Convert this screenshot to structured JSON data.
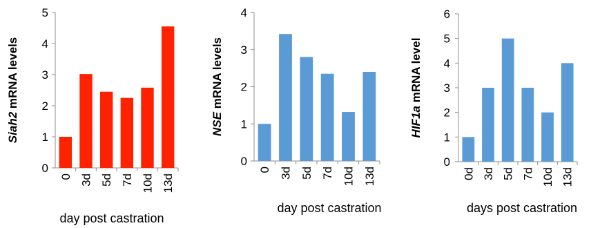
{
  "chart_data": [
    {
      "type": "bar",
      "categories": [
        "0",
        "3d",
        "5d",
        "7d",
        "10d",
        "13d"
      ],
      "values": [
        1.0,
        3.02,
        2.45,
        2.25,
        2.58,
        4.55
      ],
      "ylim": [
        0,
        5
      ],
      "yticks": [
        "0",
        "1",
        "2",
        "3",
        "4",
        "5"
      ],
      "xlabel": "day post castration",
      "ylabel_italic": "Siah2",
      "ylabel_rest": " mRNA  levels",
      "color": "#ff2200",
      "grid": false,
      "legend": "none"
    },
    {
      "type": "bar",
      "categories": [
        "0",
        "3d",
        "5d",
        "7d",
        "10d",
        "13d"
      ],
      "values": [
        1.0,
        3.42,
        2.8,
        2.35,
        1.32,
        2.4
      ],
      "ylim": [
        0,
        4
      ],
      "yticks": [
        "0",
        "1",
        "2",
        "3",
        "4"
      ],
      "xlabel": "day post castration",
      "ylabel_italic": "NSE",
      "ylabel_rest": " mRNA levels",
      "color": "#5b9bd5",
      "grid": false,
      "legend": "none"
    },
    {
      "type": "bar",
      "categories": [
        "0d",
        "3d",
        "5d",
        "7d",
        "10d",
        "13d"
      ],
      "values": [
        1.0,
        3.0,
        5.0,
        3.0,
        2.0,
        4.0
      ],
      "ylim": [
        0,
        6
      ],
      "yticks": [
        "0",
        "1",
        "2",
        "3",
        "4",
        "5",
        "6"
      ],
      "xlabel": "days post castration",
      "ylabel_italic": "HIF1a",
      "ylabel_rest": " mRNA level",
      "color": "#5b9bd5",
      "grid": false,
      "legend": "none"
    }
  ]
}
